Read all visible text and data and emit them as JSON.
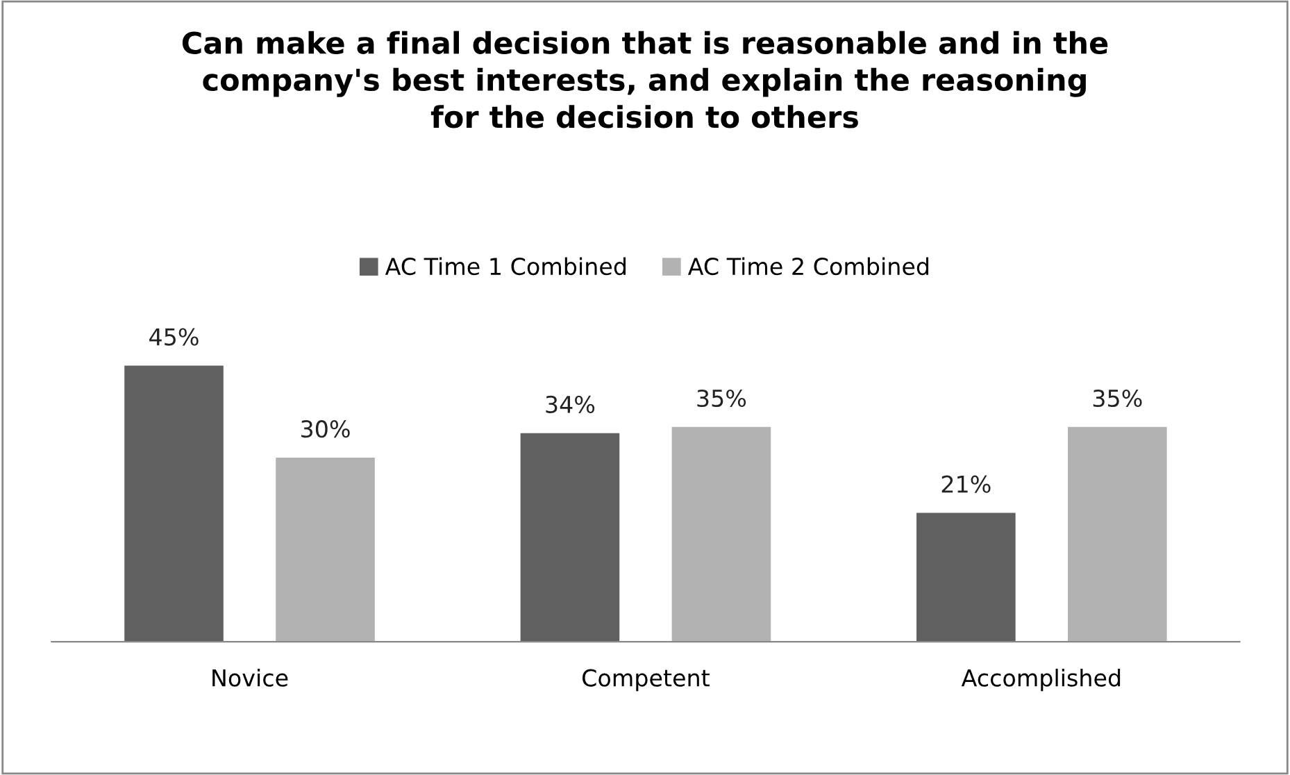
{
  "chart_data": {
    "type": "bar",
    "title": "Can make a final decision that is reasonable and in the\ncompany's best interests, and explain the reasoning\nfor the decision to others",
    "categories": [
      "Novice",
      "Competent",
      "Accomplished"
    ],
    "series": [
      {
        "name": "AC Time 1 Combined",
        "color": "#606060",
        "values": [
          45,
          34,
          21
        ],
        "value_labels": [
          "45%",
          "34%",
          "21%"
        ]
      },
      {
        "name": "AC Time 2 Combined",
        "color": "#b2b2b2",
        "values": [
          30,
          35,
          35
        ],
        "value_labels": [
          "30%",
          "35%",
          "35%"
        ]
      }
    ],
    "legend": "top",
    "grid": false
  }
}
